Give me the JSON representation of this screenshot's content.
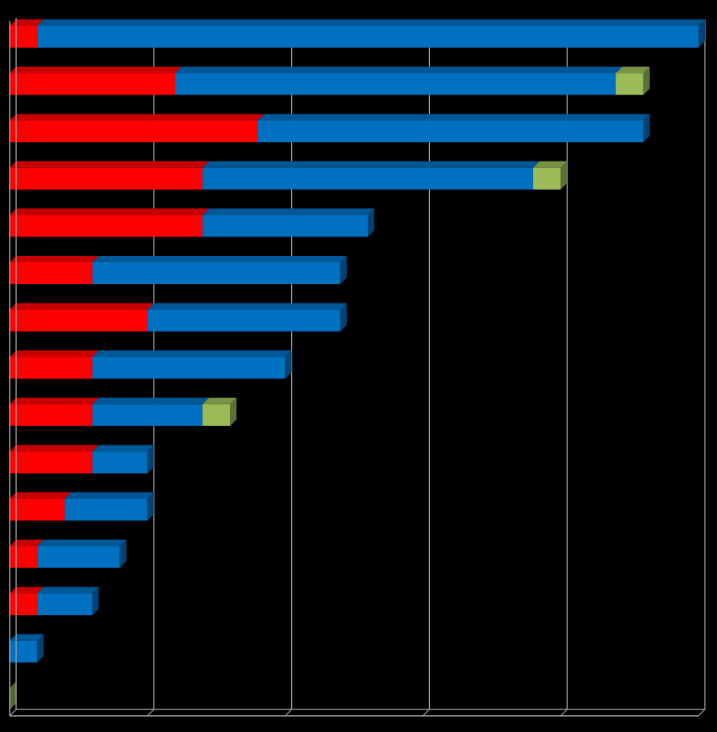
{
  "chart_data": {
    "type": "bar",
    "orientation": "horizontal",
    "stacked": true,
    "three_d": true,
    "title": "",
    "xlabel": "",
    "ylabel": "",
    "xlim": [
      0,
      25
    ],
    "grid": true,
    "legend": "none",
    "categories": [
      "",
      "",
      "",
      "",
      "",
      "",
      "",
      "",
      "",
      "",
      "",
      "",
      "",
      "",
      ""
    ],
    "series": [
      {
        "color": "#FF0000",
        "values": [
          1,
          6,
          9,
          7,
          7,
          3,
          5,
          3,
          3,
          3,
          2,
          1,
          1,
          0,
          0
        ]
      },
      {
        "color": "#0070C0",
        "values": [
          24,
          16,
          14,
          12,
          6,
          9,
          7,
          7,
          4,
          2,
          3,
          3,
          2,
          1,
          0
        ]
      },
      {
        "color": "#9BBB59",
        "values": [
          0,
          1,
          0,
          1,
          0,
          0,
          0,
          0,
          1,
          0,
          0,
          0,
          0,
          0,
          0
        ]
      }
    ],
    "colors": {
      "background": "#000000",
      "gridline": "#A6A6A6",
      "axis": "#A6A6A6"
    }
  }
}
